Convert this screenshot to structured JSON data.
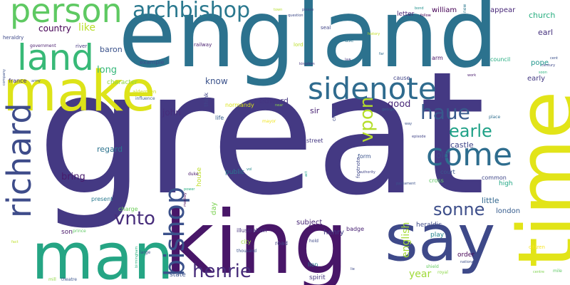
{
  "words": [
    {
      "text": "great",
      "color": "#443983"
    },
    {
      "text": "england",
      "color": "#2c728e"
    },
    {
      "text": "king",
      "color": "#481668"
    },
    {
      "text": "man",
      "color": "#25a584"
    },
    {
      "text": "time",
      "color": "#e2e418"
    },
    {
      "text": "say",
      "color": "#3e4989"
    },
    {
      "text": "make",
      "color": "#dde318"
    },
    {
      "text": "person",
      "color": "#5ec962"
    },
    {
      "text": "land",
      "color": "#38b977"
    },
    {
      "text": "sidenote",
      "color": "#2f6b8e"
    },
    {
      "text": "come",
      "color": "#2e6d8e"
    },
    {
      "text": "richard",
      "color": "#3e4c8a"
    },
    {
      "text": "bishop",
      "color": "#3b518b"
    },
    {
      "text": "archbishop",
      "color": "#2a788e"
    },
    {
      "text": "haue",
      "color": "#38598c"
    },
    {
      "text": "earle",
      "color": "#1fa187"
    },
    {
      "text": "sonne",
      "color": "#3d4e8a"
    },
    {
      "text": "vnto",
      "color": "#472d7b"
    },
    {
      "text": "henrie",
      "color": "#472c7a"
    },
    {
      "text": "vpon",
      "color": "#b5de2b"
    },
    {
      "text": "country",
      "color": "#440154"
    },
    {
      "text": "like",
      "color": "#b8de29"
    },
    {
      "text": "long",
      "color": "#35b779"
    },
    {
      "text": "baron",
      "color": "#3b528b"
    },
    {
      "text": "english",
      "color": "#a5db36"
    },
    {
      "text": "year",
      "color": "#a0da39"
    },
    {
      "text": "john",
      "color": "#472d7b"
    },
    {
      "text": "know",
      "color": "#3b528b"
    },
    {
      "text": "edward",
      "color": "#453581"
    },
    {
      "text": "good",
      "color": "#482878"
    },
    {
      "text": "bring",
      "color": "#481a6c"
    },
    {
      "text": "regard",
      "color": "#2c738e"
    },
    {
      "text": "sir",
      "color": "#482173"
    },
    {
      "text": "old",
      "color": "#3f4788"
    },
    {
      "text": "castle",
      "color": "#404588"
    },
    {
      "text": "church",
      "color": "#28ae80"
    },
    {
      "text": "earl",
      "color": "#46327e"
    },
    {
      "text": "pope",
      "color": "#1f958b"
    },
    {
      "text": "early",
      "color": "#443a83"
    },
    {
      "text": "william",
      "color": "#440154"
    },
    {
      "text": "letter",
      "color": "#482475"
    },
    {
      "text": "appear",
      "color": "#482878"
    },
    {
      "text": "little",
      "color": "#31668e"
    },
    {
      "text": "london",
      "color": "#365c8d"
    },
    {
      "text": "henry",
      "color": "#433e85"
    },
    {
      "text": "subject",
      "color": "#482677"
    },
    {
      "text": "day",
      "color": "#7ad151"
    },
    {
      "text": "house",
      "color": "#bddf26"
    },
    {
      "text": "public",
      "color": "#2a788e"
    },
    {
      "text": "son",
      "color": "#481769"
    },
    {
      "text": "play",
      "color": "#25858e"
    },
    {
      "text": "high",
      "color": "#22a785"
    },
    {
      "text": "heraldic",
      "color": "#3e4a89"
    },
    {
      "text": "badge",
      "color": "#482173"
    },
    {
      "text": "illustration",
      "color": "#46327e"
    },
    {
      "text": "spirit",
      "color": "#453781"
    },
    {
      "text": "lion",
      "color": "#287d8e"
    },
    {
      "text": "state",
      "color": "#3b528b"
    },
    {
      "text": "order",
      "color": "#440154"
    },
    {
      "text": "normandy",
      "color": "#dae319"
    },
    {
      "text": "character",
      "color": "#8fd744"
    },
    {
      "text": "character2",
      "color": "#8fd744"
    },
    {
      "text": "example",
      "color": "#3e4c8a"
    },
    {
      "text": "france",
      "color": "#46307e"
    },
    {
      "text": "life",
      "color": "#365d8d"
    },
    {
      "text": "present",
      "color": "#29798e"
    },
    {
      "text": "charge",
      "color": "#6ccd5a"
    },
    {
      "text": "cross",
      "color": "#5ec962"
    },
    {
      "text": "court",
      "color": "#39558c"
    },
    {
      "text": "common",
      "color": "#3f4788"
    },
    {
      "text": "arm",
      "color": "#471365"
    },
    {
      "text": "council",
      "color": "#26ad81"
    },
    {
      "text": "cause",
      "color": "#414487"
    },
    {
      "text": "form",
      "color": "#3a538b"
    },
    {
      "text": "street",
      "color": "#453882"
    },
    {
      "text": "think",
      "color": "#404588"
    },
    {
      "text": "road",
      "color": "#414487"
    },
    {
      "text": "city",
      "color": "#9dd93b"
    },
    {
      "text": "heraldry",
      "color": "#3e4989"
    },
    {
      "text": "government",
      "color": "#481b6d"
    },
    {
      "text": "river",
      "color": "#453781"
    },
    {
      "text": "railway",
      "color": "#481f70"
    },
    {
      "text": "lord",
      "color": "#bade28"
    },
    {
      "text": "use",
      "color": "#2c728e"
    },
    {
      "text": "seal",
      "color": "#414487"
    },
    {
      "text": "crest",
      "color": "#3e4a89"
    },
    {
      "text": "footnote",
      "color": "#3f4889"
    },
    {
      "text": "aldermen",
      "color": "#d2e21b"
    },
    {
      "text": "influence",
      "color": "#38598c"
    },
    {
      "text": "mayor",
      "color": "#f1e51d"
    },
    {
      "text": "thousand",
      "color": "#3b528b"
    },
    {
      "text": "large",
      "color": "#3e4c8a"
    },
    {
      "text": "prince",
      "color": "#5ec962"
    },
    {
      "text": "duke",
      "color": "#48186a"
    },
    {
      "text": "power",
      "color": "#29af7f"
    },
    {
      "text": "authority",
      "color": "#414487"
    },
    {
      "text": "place",
      "color": "#2e6e8e"
    },
    {
      "text": "citizen",
      "color": "#f8e621"
    },
    {
      "text": "hold",
      "color": "#3e4989"
    },
    {
      "text": "shield",
      "color": "#63cb5f"
    },
    {
      "text": "royal",
      "color": "#8bd646"
    },
    {
      "text": "theatre",
      "color": "#3a548c"
    },
    {
      "text": "mill",
      "color": "#90d743"
    },
    {
      "text": "fact",
      "color": "#bddf26"
    },
    {
      "text": "company",
      "color": "#3b518b"
    },
    {
      "text": "army",
      "color": "#3a548c"
    },
    {
      "text": "birmingham",
      "color": "#29af7f"
    },
    {
      "text": "national",
      "color": "#3c4f8a"
    },
    {
      "text": "town",
      "color": "#b5de2b"
    },
    {
      "text": "question",
      "color": "#3e4a89"
    },
    {
      "text": "please",
      "color": "#3f4788"
    },
    {
      "text": "bond",
      "color": "#21918c"
    },
    {
      "text": "follow",
      "color": "#440154"
    },
    {
      "text": "new",
      "color": "#2a788e"
    },
    {
      "text": "history",
      "color": "#c2df23"
    },
    {
      "text": "far",
      "color": "#2f6c8e"
    },
    {
      "text": "law",
      "color": "#433e85"
    },
    {
      "text": "kingdom",
      "color": "#46337f"
    },
    {
      "text": "near",
      "color": "#8bd646"
    },
    {
      "text": "work",
      "color": "#481a6c"
    },
    {
      "text": "cent",
      "color": "#3b518b"
    },
    {
      "text": "century",
      "color": "#3f4889"
    },
    {
      "text": "soon",
      "color": "#30b47f"
    },
    {
      "text": "george",
      "color": "#355f8d"
    },
    {
      "text": "way",
      "color": "#3b518b"
    },
    {
      "text": "episode",
      "color": "#414487"
    },
    {
      "text": "vol",
      "color": "#238a8d"
    },
    {
      "text": "act",
      "color": "#1fa088"
    },
    {
      "text": "monkey",
      "color": "#440154"
    },
    {
      "text": "mile",
      "color": "#5cc863"
    },
    {
      "text": "centre",
      "color": "#7fd34e"
    },
    {
      "text": "lie",
      "color": "#3e4989"
    },
    {
      "text": "parliament",
      "color": "#3b528b"
    }
  ]
}
